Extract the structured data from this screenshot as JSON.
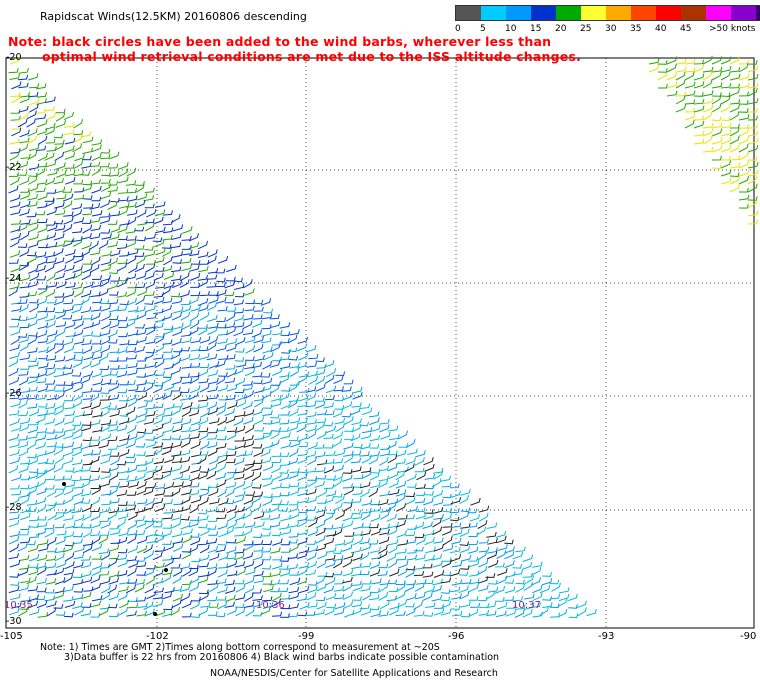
{
  "title": "Rapidscat Winds(12.5KM) 20160806 descending",
  "note_line1": "Note: black circles have been added to the wind barbs, wherever less than",
  "note_line2": "optimal wind retrieval conditions are met due to the ISS altitude changes.",
  "scale": {
    "colors": [
      "#555555",
      "#00ccff",
      "#0099ff",
      "#0033cc",
      "#00aa00",
      "#ffff33",
      "#ffaa00",
      "#ff4400",
      "#ff0000",
      "#aa3300",
      "#ff00ff",
      "#8800cc",
      "#330066"
    ],
    "labels": [
      "0",
      "5",
      "10",
      "15",
      "20",
      "25",
      "30",
      "35",
      "40",
      "45",
      ">50 knots"
    ]
  },
  "axes": {
    "x_ticks": [
      "-105",
      "-102",
      "-99",
      "-96",
      "-93",
      "-90"
    ],
    "y_ticks": [
      "-20",
      "-22",
      "-24",
      "-26",
      "-28",
      "-30"
    ]
  },
  "times": [
    "10:35",
    "10:36",
    "10:37"
  ],
  "footer": {
    "line1": "Note: 1) Times are GMT 2)Times along bottom correspond to measurement at ~20S",
    "line2": "3)Data buffer is 22 hrs from 20160806 4) Black wind barbs indicate possible contamination",
    "line3": "NOAA/NESDIS/Center for Satellite Applications and Research"
  }
}
